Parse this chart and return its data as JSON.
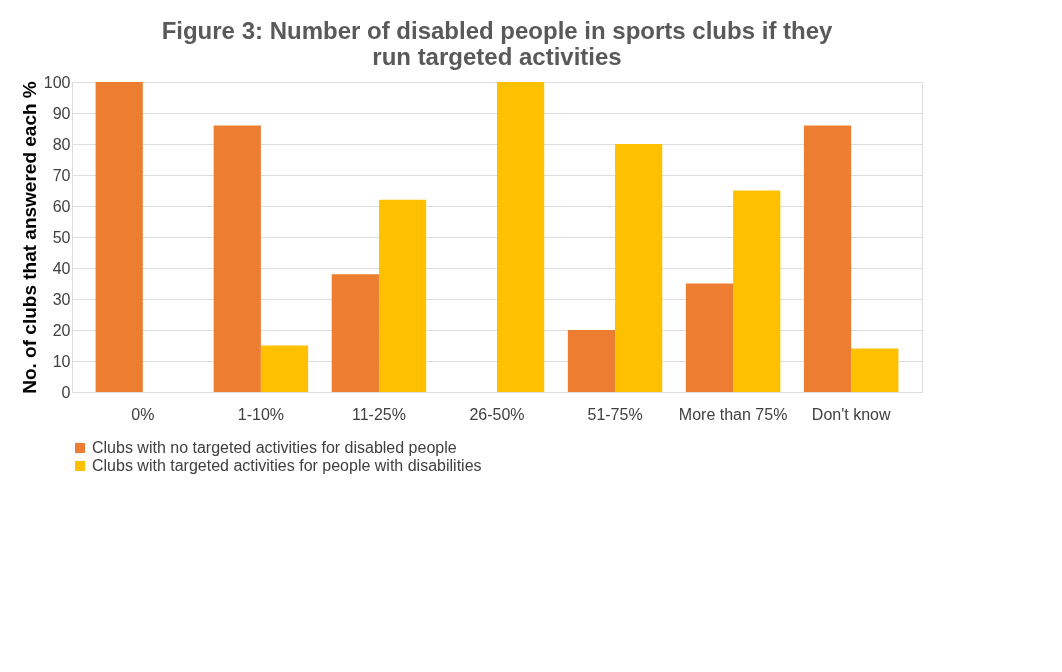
{
  "chart_data": {
    "type": "bar",
    "title": "Figure 3: Number of disabled people in sports clubs if they run targeted activities",
    "ylabel": "No. of clubs that answered each %",
    "categories": [
      "0%",
      "1-10%",
      "11-25%",
      "26-50%",
      "51-75%",
      "More than 75%",
      "Don't know"
    ],
    "series": [
      {
        "name": "Clubs with no targeted activities for disabled people",
        "color": "#ed7d31",
        "values": [
          100,
          86,
          38,
          0,
          20,
          35,
          86
        ]
      },
      {
        "name": "Clubs with targeted activities for people with disabilities",
        "color": "#ffc000",
        "values": [
          0,
          15,
          62,
          100,
          80,
          65,
          14
        ]
      }
    ],
    "ylim": [
      0,
      100
    ],
    "yticks": [
      0,
      10,
      20,
      30,
      40,
      50,
      60,
      70,
      80,
      90,
      100
    ],
    "grid": "y",
    "legend": "bottom"
  }
}
